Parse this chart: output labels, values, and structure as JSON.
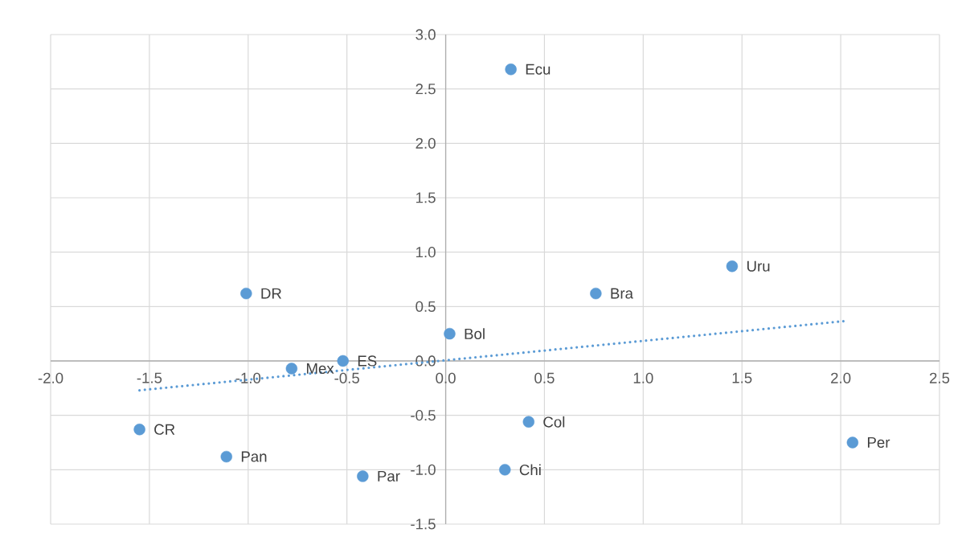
{
  "chart_data": {
    "type": "scatter",
    "grid": true,
    "xlim": [
      -2.0,
      2.5
    ],
    "xticks": [
      {
        "value": -2,
        "label": "-2.0"
      },
      {
        "value": -1.5,
        "label": "-1.5"
      },
      {
        "value": -1,
        "label": "-1.0"
      },
      {
        "value": -0.5,
        "label": "-0.5"
      },
      {
        "value": 0,
        "label": "0.0"
      },
      {
        "value": 0.5,
        "label": "0.5"
      },
      {
        "value": 1,
        "label": "1.0"
      },
      {
        "value": 1.5,
        "label": "1.5"
      },
      {
        "value": 2,
        "label": "2.0"
      },
      {
        "value": 2.5,
        "label": "2.5"
      }
    ],
    "ylim": [
      -1.5,
      3.0
    ],
    "yticks": [
      {
        "value": -1.5,
        "label": "-1.5"
      },
      {
        "value": -1,
        "label": "-1.0"
      },
      {
        "value": -0.5,
        "label": "-0.5"
      },
      {
        "value": 0,
        "label": "0.0"
      },
      {
        "value": 0.5,
        "label": "0.5"
      },
      {
        "value": 1,
        "label": "1.0"
      },
      {
        "value": 1.5,
        "label": "1.5"
      },
      {
        "value": 2,
        "label": "2.0"
      },
      {
        "value": 2.5,
        "label": "2.5"
      },
      {
        "value": 3,
        "label": "3.0"
      }
    ],
    "series": [
      {
        "type": "scatter",
        "marker": "circle",
        "color": "#5b9bd5",
        "x": [
          0.33,
          1.45,
          0.76,
          -1.01,
          0.02,
          -0.52,
          -0.78,
          -1.55,
          -1.11,
          -0.42,
          0.3,
          0.42,
          2.06
        ],
        "values": [
          2.68,
          0.87,
          0.62,
          0.62,
          0.25,
          0.0,
          -0.07,
          -0.63,
          -0.88,
          -1.06,
          -1.0,
          -0.56,
          -0.75
        ]
      },
      {
        "type": "line",
        "color": "#5b9bd5",
        "line_style": "dotted",
        "marker": "none",
        "x": [
          -1.55,
          2.04
        ],
        "values": [
          -0.27,
          0.37
        ]
      }
    ],
    "annotations": [
      {
        "text": "Ecu",
        "x": 0.33,
        "y": 2.68
      },
      {
        "text": "Uru",
        "x": 1.45,
        "y": 0.87
      },
      {
        "text": "Bra",
        "x": 0.76,
        "y": 0.62
      },
      {
        "text": "DR",
        "x": -1.01,
        "y": 0.62
      },
      {
        "text": "Bol",
        "x": 0.02,
        "y": 0.25
      },
      {
        "text": "ES",
        "x": -0.52,
        "y": 0.0
      },
      {
        "text": "Mex",
        "x": -0.78,
        "y": -0.07
      },
      {
        "text": "CR",
        "x": -1.55,
        "y": -0.63
      },
      {
        "text": "Pan",
        "x": -1.11,
        "y": -0.88
      },
      {
        "text": "Par",
        "x": -0.42,
        "y": -1.06
      },
      {
        "text": "Chi",
        "x": 0.3,
        "y": -1.0
      },
      {
        "text": "Col",
        "x": 0.42,
        "y": -0.56
      },
      {
        "text": "Per",
        "x": 2.06,
        "y": -0.75
      }
    ]
  }
}
